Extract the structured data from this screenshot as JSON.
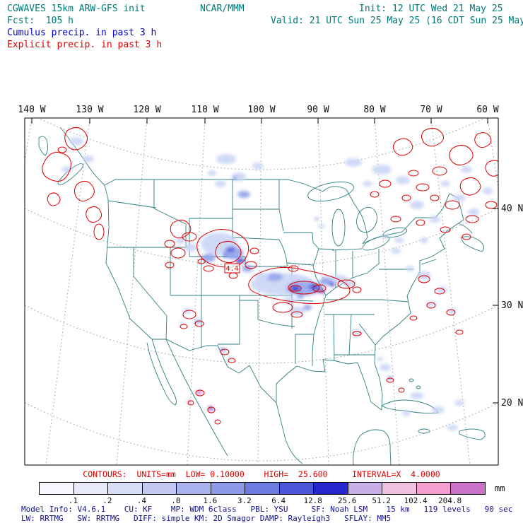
{
  "colors": {
    "teal_text": "#007878",
    "blue_text": "#0000cc",
    "red_text": "#dd0000",
    "navy_text": "#101090",
    "map_line": "#2f7f7f",
    "contour_red": "#dd0000"
  },
  "header": {
    "title": "CGWAVES 15km ARW-GFS init",
    "fcst": "Fcst:  105 h",
    "cumulus": "Cumulus precip. in past 3 h",
    "explicit": "Explicit precip. in past 3 h",
    "org": "NCAR/MMM",
    "init": "Init: 12 UTC Wed 21 May 25",
    "valid": "Valid: 21 UTC Sun 25 May 25 (16 CDT Sun 25 May 25)"
  },
  "map": {
    "lon_labels": [
      "140 W",
      "130 W",
      "120 W",
      "110 W",
      "100 W",
      "90 W",
      "80 W",
      "70 W",
      "60 W"
    ],
    "lat_labels": [
      "40 N",
      "30 N",
      "20 N"
    ],
    "max_label": "4.4"
  },
  "contour_info": "CONTOURS:  UNITS=mm  LOW= 0.10000    HIGH=  25.600     INTERVAL=X  4.0000",
  "colorbar": {
    "unit": "mm",
    "tick_labels": [
      ".1",
      ".2",
      ".4",
      ".8",
      "1.6",
      "3.2",
      "6.4",
      "12.8",
      "25.6",
      "51.2",
      "102.4",
      "204.8"
    ],
    "colors": [
      "#f6f6fe",
      "#e9eafb",
      "#d9dcf7",
      "#c3c9f3",
      "#a9b3ee",
      "#8d99e8",
      "#6d7ce1",
      "#4a57d9",
      "#2526cd",
      "#c9aee8",
      "#efc2e4",
      "#f49fd0",
      "#c873c8"
    ]
  },
  "footer": {
    "line1": "Model Info: V4.6.1    CU: KF    MP: WDM 6class   PBL: YSU     SF: Noah LSM    15 km   119 levels   90 sec",
    "line2": "LW: RRTMG   SW: RRTMG   DIFF: simple KM: 2D Smagor DAMP: Rayleigh3   SFLAY: MM5"
  }
}
